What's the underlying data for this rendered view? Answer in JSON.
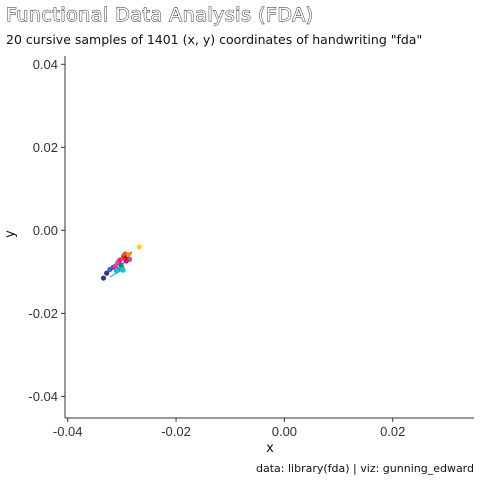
{
  "chart_data": {
    "type": "scatter",
    "title": "Functional Data Analysis (FDA)",
    "subtitle": "20 cursive samples of 1401 (x, y) coordinates of handwriting \"fda\"",
    "xlabel": "x",
    "ylabel": "y",
    "caption": "data: library(fda) | viz: gunning_edward",
    "xlim": [
      -0.0405,
      0.035
    ],
    "ylim": [
      -0.0452,
      0.042
    ],
    "x_ticks": [
      -0.04,
      -0.02,
      0.0,
      0.02
    ],
    "x_tick_labels": [
      "-0.04",
      "-0.02",
      "0.00",
      "0.02"
    ],
    "y_ticks": [
      -0.04,
      -0.02,
      0.0,
      0.02,
      0.04
    ],
    "y_tick_labels": [
      "-0.04",
      "-0.02",
      "0.00",
      "0.02",
      "0.04"
    ],
    "grid": false,
    "legend": "none",
    "points": [
      {
        "x": -0.0334,
        "y": -0.0115,
        "color": "#2c3e7a"
      },
      {
        "x": -0.0328,
        "y": -0.0103,
        "color": "#3b2a8f"
      },
      {
        "x": -0.0322,
        "y": -0.0094,
        "color": "#2a6fb5"
      },
      {
        "x": -0.0316,
        "y": -0.0089,
        "color": "#8a2be2"
      },
      {
        "x": -0.0312,
        "y": -0.0086,
        "color": "#c94c7a"
      },
      {
        "x": -0.0308,
        "y": -0.0078,
        "color": "#e75480"
      },
      {
        "x": -0.0304,
        "y": -0.0072,
        "color": "#ff1493"
      },
      {
        "x": -0.0306,
        "y": -0.0094,
        "color": "#20b2aa"
      },
      {
        "x": -0.03,
        "y": -0.0088,
        "color": "#3cb371"
      },
      {
        "x": -0.0298,
        "y": -0.0067,
        "color": "#ff4500"
      },
      {
        "x": -0.0296,
        "y": -0.0061,
        "color": "#d62728"
      },
      {
        "x": -0.0294,
        "y": -0.0057,
        "color": "#e8552f"
      },
      {
        "x": -0.029,
        "y": -0.0064,
        "color": "#8b0000"
      },
      {
        "x": -0.0288,
        "y": -0.0059,
        "color": "#ff8c00"
      },
      {
        "x": -0.0286,
        "y": -0.007,
        "color": "#9b59b6"
      },
      {
        "x": -0.0302,
        "y": -0.0083,
        "color": "#1f77b4"
      },
      {
        "x": -0.031,
        "y": -0.0098,
        "color": "#17becf"
      },
      {
        "x": -0.0298,
        "y": -0.0096,
        "color": "#00ced1"
      },
      {
        "x": -0.0292,
        "y": -0.0074,
        "color": "#c71585"
      },
      {
        "x": -0.0268,
        "y": -0.004,
        "color": "#ffd700"
      }
    ],
    "series_colors": [
      "#2c3e7a",
      "#3b2a8f",
      "#2a6fb5",
      "#8a2be2",
      "#c94c7a",
      "#e75480",
      "#ff1493",
      "#20b2aa",
      "#3cb371",
      "#ff4500",
      "#d62728",
      "#e8552f",
      "#8b0000",
      "#ff8c00",
      "#9b59b6",
      "#1f77b4",
      "#17becf",
      "#00ced1",
      "#c71585",
      "#ffd700"
    ],
    "trails": [
      {
        "x": [
          -0.0322,
          -0.0306,
          -0.0296
        ],
        "y": [
          -0.0112,
          -0.01,
          -0.0094
        ],
        "color": "#00ced1"
      },
      {
        "x": [
          -0.0296,
          -0.0288,
          -0.0282
        ],
        "y": [
          -0.007,
          -0.006,
          -0.0053
        ],
        "color": "#222222"
      },
      {
        "x": [
          -0.0302,
          -0.029,
          -0.0282
        ],
        "y": [
          -0.0083,
          -0.0072,
          -0.0066
        ],
        "color": "#1f77b4"
      }
    ]
  }
}
